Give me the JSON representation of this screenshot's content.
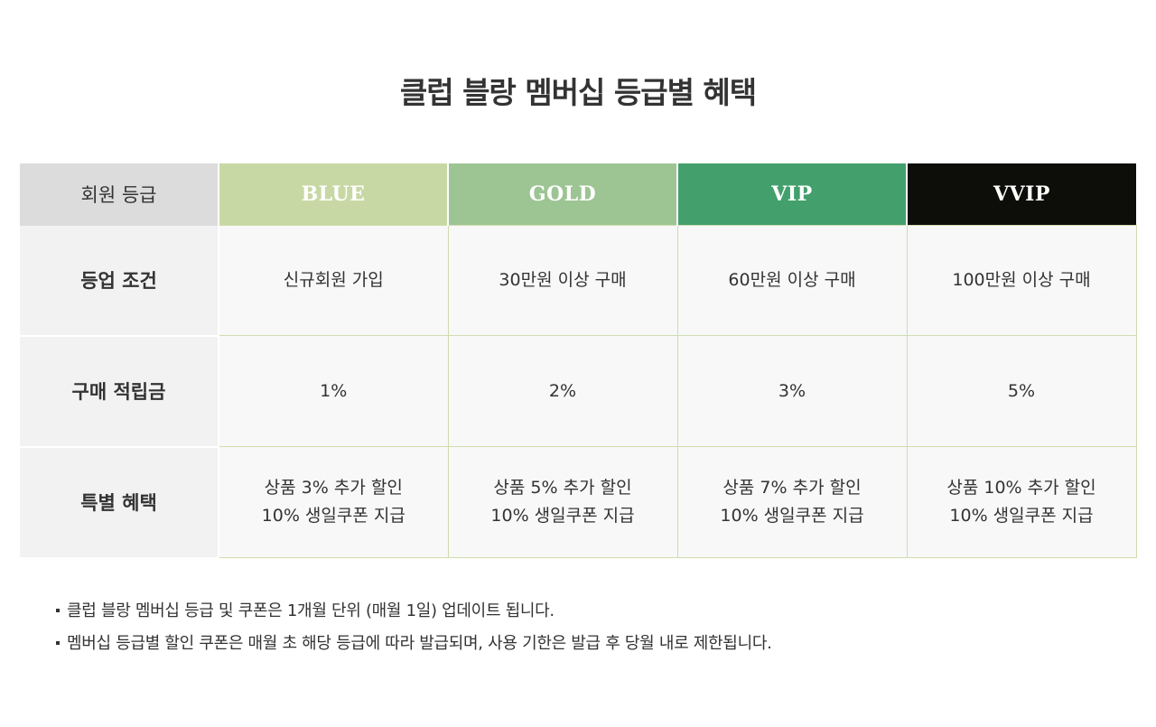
{
  "title": "클럽 블랑 멤버십 등급별 혜택",
  "table": {
    "header_label": "회원 등급",
    "tiers": [
      {
        "name": "BLUE",
        "color": "#c8d8a4"
      },
      {
        "name": "GOLD",
        "color": "#9dc493"
      },
      {
        "name": "VIP",
        "color": "#43a06d"
      },
      {
        "name": "VVIP",
        "color": "#0d0d0a"
      }
    ],
    "rows": [
      {
        "label": "등업 조건",
        "cells": [
          {
            "line1": "신규회원 가입",
            "line2": ""
          },
          {
            "line1": "30만원 이상 구매",
            "line2": ""
          },
          {
            "line1": "60만원 이상 구매",
            "line2": ""
          },
          {
            "line1": "100만원 이상 구매",
            "line2": ""
          }
        ]
      },
      {
        "label": "구매 적립금",
        "cells": [
          {
            "line1": "1%",
            "line2": ""
          },
          {
            "line1": "2%",
            "line2": ""
          },
          {
            "line1": "3%",
            "line2": ""
          },
          {
            "line1": "5%",
            "line2": ""
          }
        ]
      },
      {
        "label": "특별 혜택",
        "cells": [
          {
            "line1": "상품 3% 추가 할인",
            "line2": "10% 생일쿠폰 지급"
          },
          {
            "line1": "상품 5% 추가 할인",
            "line2": "10% 생일쿠폰 지급"
          },
          {
            "line1": "상품 7% 추가 할인",
            "line2": "10% 생일쿠폰 지급"
          },
          {
            "line1": "상품 10% 추가 할인",
            "line2": "10% 생일쿠폰 지급"
          }
        ]
      }
    ]
  },
  "notes": [
    "클럽 블랑 멤버십 등급 및 쿠폰은 1개월 단위 (매월 1일) 업데이트 됩니다.",
    "멤버십 등급별 할인 쿠폰은 매월 초 해당 등급에 따라 발급되며, 사용 기한은 발급 후 당월 내로 제한됩니다."
  ]
}
